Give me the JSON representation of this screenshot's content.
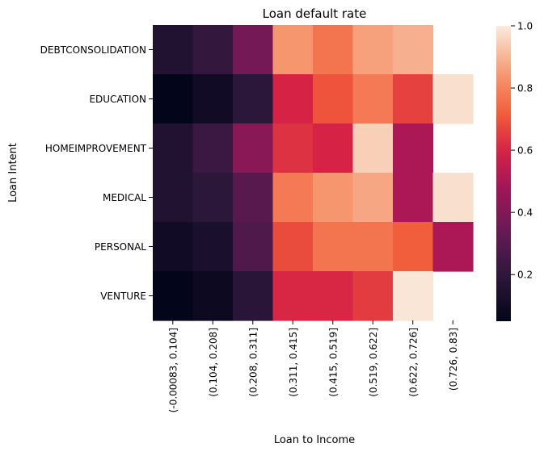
{
  "chart_data": {
    "type": "heatmap",
    "title": "Loan default rate",
    "xlabel": "Loan to Income",
    "ylabel": "Loan Intent",
    "x_categories": [
      "(-0.00083, 0.104]",
      "(0.104, 0.208]",
      "(0.208, 0.311]",
      "(0.311, 0.415]",
      "(0.415, 0.519]",
      "(0.519, 0.622]",
      "(0.622, 0.726]",
      "(0.726, 0.83]"
    ],
    "y_categories": [
      "DEBTCONSOLIDATION",
      "EDUCATION",
      "HOMEIMPROVEMENT",
      "MEDICAL",
      "PERSONAL",
      "VENTURE"
    ],
    "values": [
      [
        0.15,
        0.21,
        0.37,
        0.84,
        0.77,
        0.86,
        0.89,
        null
      ],
      [
        0.05,
        0.1,
        0.19,
        0.6,
        0.7,
        0.78,
        0.66,
        0.98
      ],
      [
        0.15,
        0.23,
        0.42,
        0.63,
        0.6,
        0.95,
        0.5,
        null
      ],
      [
        0.15,
        0.19,
        0.3,
        0.78,
        0.84,
        0.87,
        0.5,
        0.98
      ],
      [
        0.1,
        0.13,
        0.28,
        0.68,
        0.77,
        0.77,
        0.72,
        0.5
      ],
      [
        0.04,
        0.08,
        0.18,
        0.61,
        0.61,
        0.65,
        0.99,
        null
      ]
    ],
    "colorbar": {
      "min": 0.05,
      "max": 1.0,
      "ticks": [
        0.2,
        0.4,
        0.6,
        0.8,
        1.0
      ],
      "tick_labels": [
        "0.2",
        "0.4",
        "0.6",
        "0.8",
        "1.0"
      ]
    },
    "colormap": "rocket",
    "grid": false
  }
}
